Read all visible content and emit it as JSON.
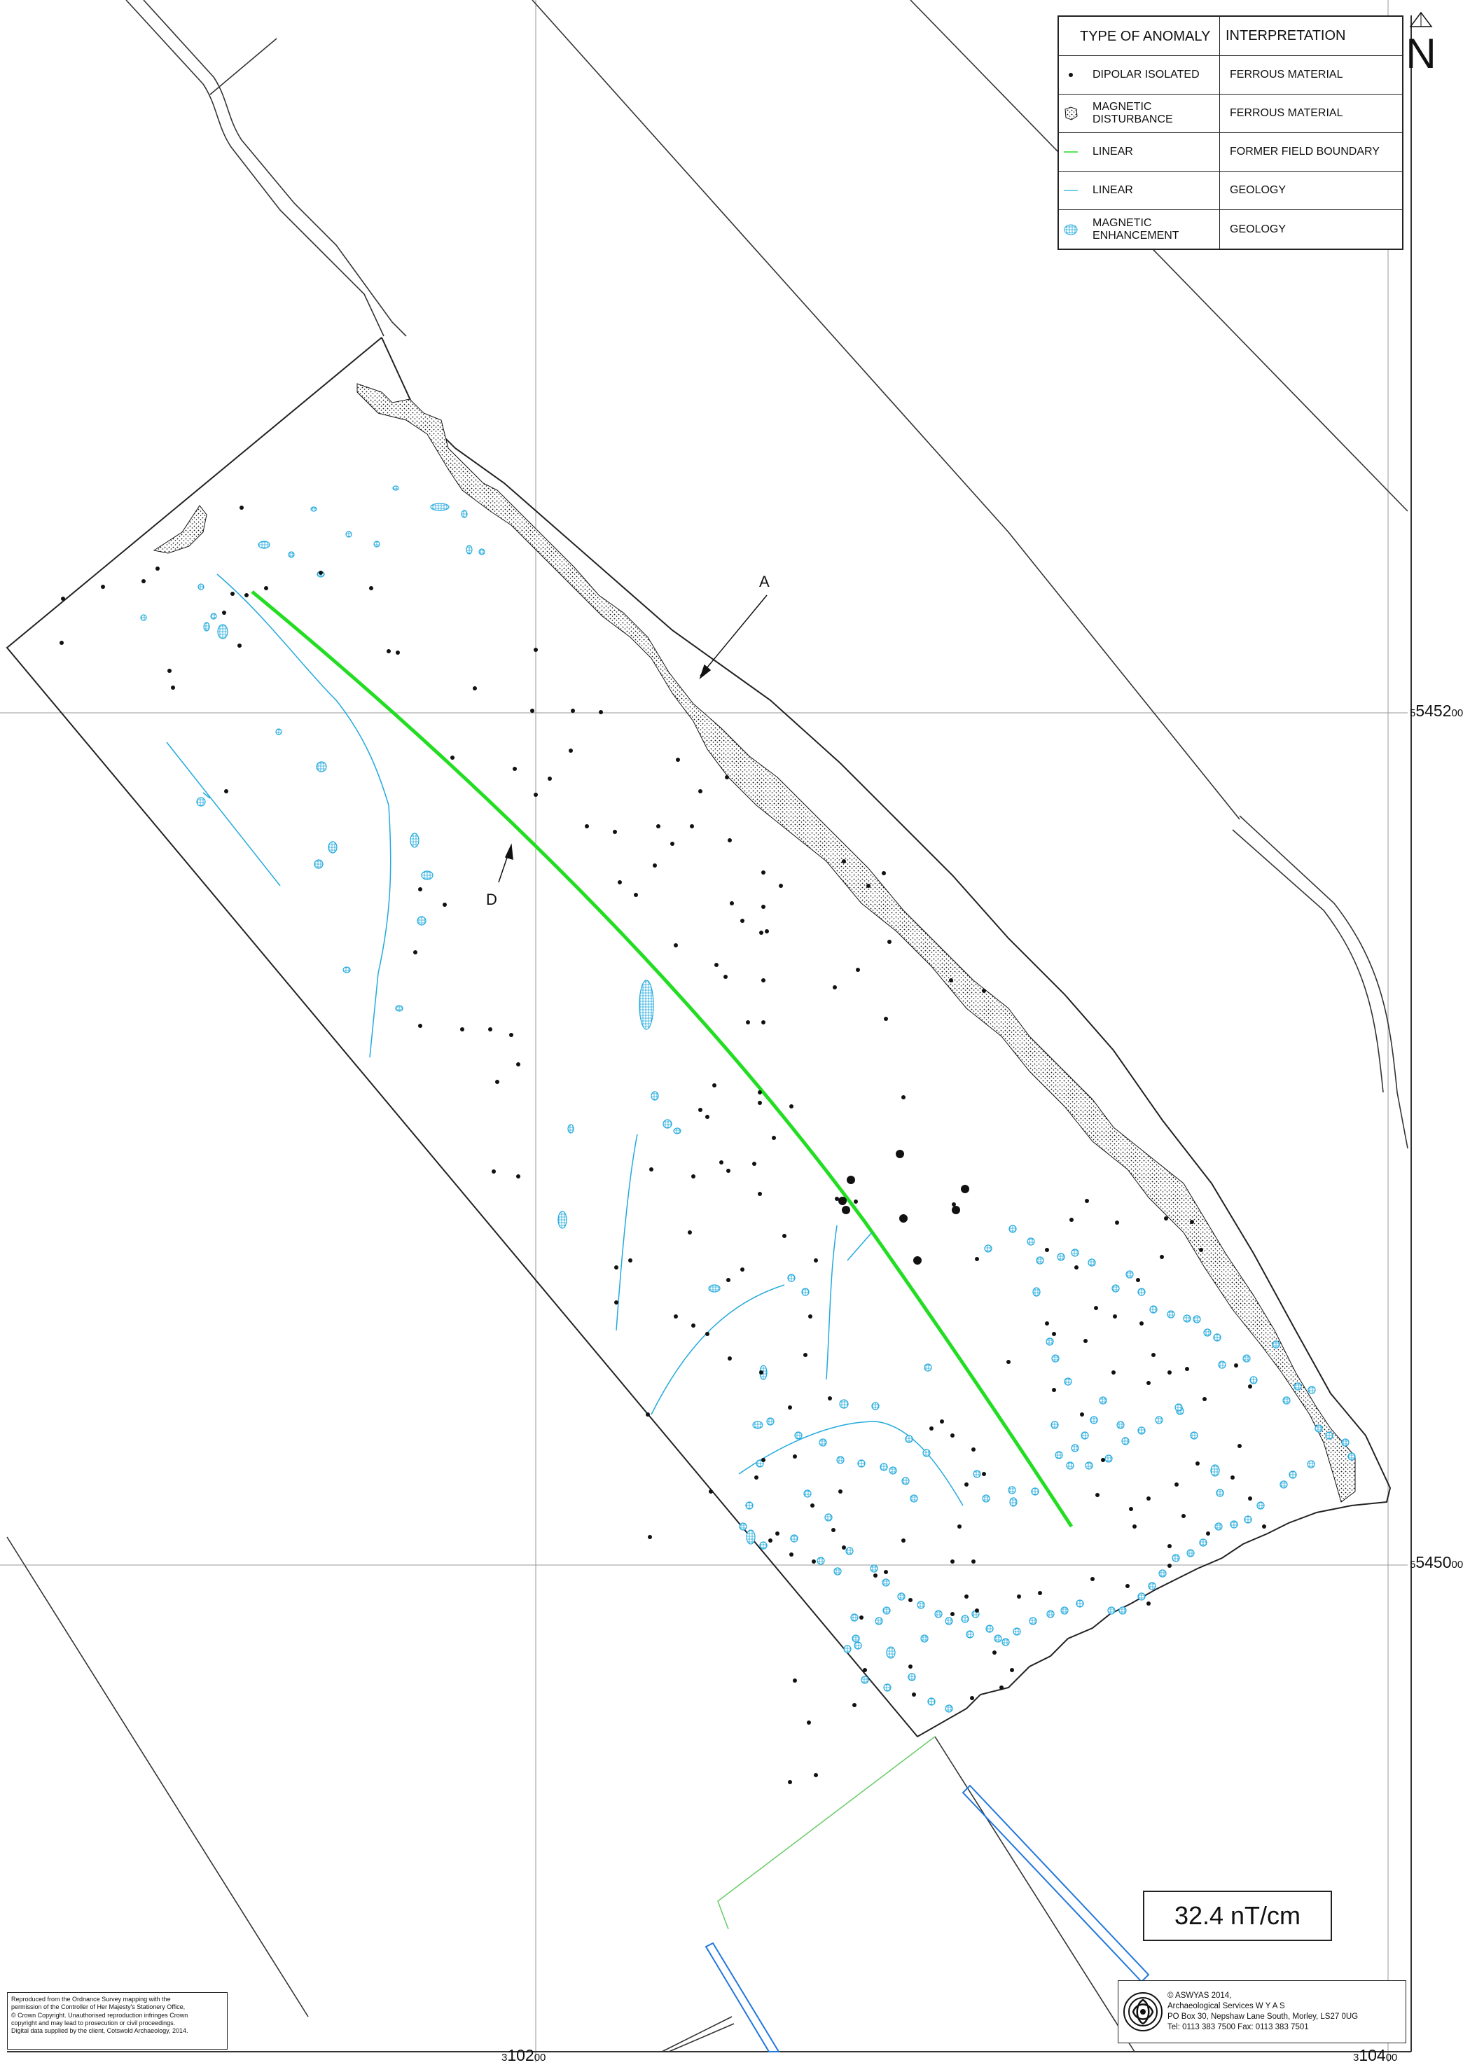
{
  "legend": {
    "header": {
      "type": "TYPE OF ANOMALY",
      "interpretation": "INTERPRETATION"
    },
    "rows": [
      {
        "symbol": "dipole-dot-icon",
        "type": "DIPOLAR ISOLATED",
        "interpretation": "FERROUS MATERIAL"
      },
      {
        "symbol": "stipple-patch-icon",
        "type": "MAGNETIC DISTURBANCE",
        "interpretation": "FERROUS MATERIAL"
      },
      {
        "symbol": "green-line-icon",
        "type": "LINEAR",
        "interpretation": "FORMER FIELD BOUNDARY"
      },
      {
        "symbol": "blue-line-icon",
        "type": "LINEAR",
        "interpretation": "GEOLOGY"
      },
      {
        "symbol": "blue-hatch-icon",
        "type": "MAGNETIC ENHANCEMENT",
        "interpretation": "GEOLOGY"
      }
    ]
  },
  "north": "N",
  "scale": "32.4 nT/cm",
  "grid": {
    "northing_top": {
      "main": "5452",
      "small": "00",
      "prefix": "5"
    },
    "northing_bottom": {
      "main": "5450",
      "small": "00",
      "prefix": "5"
    },
    "easting_left": {
      "main": "102",
      "small": "00",
      "prefix": "3"
    },
    "easting_right": {
      "main": "104",
      "small": "00",
      "prefix": "3"
    }
  },
  "callouts": {
    "a": "A",
    "d": "D"
  },
  "copyright_lines": [
    "Reproduced from the Ordnance Survey mapping with the",
    "permission of the Controller of Her Majesty's Stationery Office,",
    "© Crown Copyright. Unauthorised reproduction infringes Crown",
    "copyright and may lead to prosecution or civil proceedings.",
    "Digital data supplied by the client, Cotswold Archaeology, 2014."
  ],
  "credit_lines": [
    "© ASWYAS 2014,",
    "Archaeological Services W Y A S",
    "PO Box 30, Nepshaw Lane South, Morley, LS27 0UG",
    "Tel: 0113 383 7500   Fax: 0113 383 7501"
  ],
  "colors": {
    "ferrous": "#111111",
    "field_boundary": "#22dd22",
    "geology": "#22aadd",
    "linework": "#333333",
    "pipe": "#2277dd",
    "thin_green": "#66cc66"
  }
}
